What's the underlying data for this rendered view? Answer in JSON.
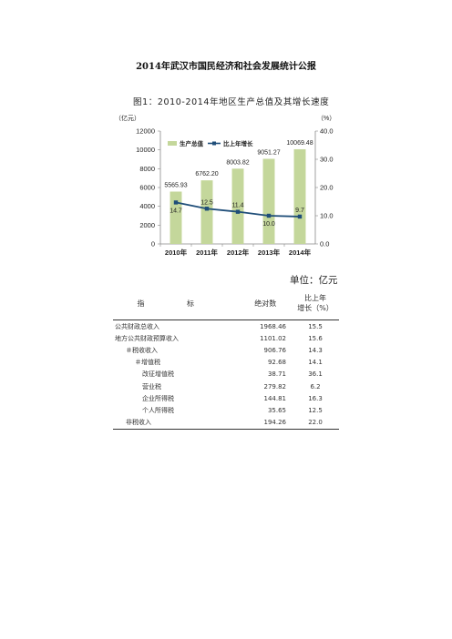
{
  "document": {
    "title": "2014年武汉市国民经济和社会发展统计公报",
    "figure_caption": "图1：2010-2014年地区生产总值及其增长速度",
    "unit_label": "单位：亿元"
  },
  "chart_data": {
    "type": "bar",
    "categories": [
      "2010年",
      "2011年",
      "2012年",
      "2013年",
      "2014年"
    ],
    "series": [
      {
        "name": "生产总值",
        "type": "bar",
        "axis": "left",
        "color": "#c4d79b",
        "values": [
          5565.93,
          6762.2,
          8003.82,
          9051.27,
          10069.48
        ],
        "labels": [
          "5565.93",
          "6762.20",
          "8003.82",
          "9051.27",
          "10069.48"
        ]
      },
      {
        "name": "比上年增长",
        "type": "line",
        "axis": "right",
        "color": "#1f4e79",
        "values": [
          14.7,
          12.5,
          11.4,
          10.0,
          9.7
        ],
        "labels": [
          "14.7",
          "12.5",
          "11.4",
          "10.0",
          "9.7"
        ]
      }
    ],
    "ylabel": "（亿元）",
    "y2label": "（%）",
    "ylim": [
      0,
      12000
    ],
    "y2lim": [
      0,
      40
    ],
    "yticks": [
      "0",
      "2000",
      "4000",
      "6000",
      "8000",
      "10000",
      "12000"
    ],
    "y2ticks": [
      "0.0",
      "10.0",
      "20.0",
      "30.0",
      "40.0"
    ],
    "legend": "top-left",
    "grid": false
  },
  "table": {
    "headers": {
      "name": "指 标",
      "abs": "绝对数",
      "growth_line1": "比上年",
      "growth_line2": "增长（%）"
    },
    "rows": [
      {
        "name": "公共财政总收入",
        "abs": "1968.46",
        "growth": "15.5",
        "level": 0
      },
      {
        "name": "地方公共财政预算收入",
        "abs": "1101.02",
        "growth": "15.6",
        "level": 0
      },
      {
        "name": "＃税收收入",
        "abs": "906.76",
        "growth": "14.3",
        "level": 1
      },
      {
        "name": "＃增值税",
        "abs": "92.68",
        "growth": "14.1",
        "level": 2
      },
      {
        "name": "改征增值税",
        "abs": "38.71",
        "growth": "36.1",
        "level": 3
      },
      {
        "name": "营业税",
        "abs": "279.82",
        "growth": "6.2",
        "level": 3
      },
      {
        "name": "企业所得税",
        "abs": "144.81",
        "growth": "16.3",
        "level": 3
      },
      {
        "name": "个人所得税",
        "abs": "35.65",
        "growth": "12.5",
        "level": 3
      },
      {
        "name": "非税收入",
        "abs": "194.26",
        "growth": "22.0",
        "level": 1
      }
    ]
  }
}
